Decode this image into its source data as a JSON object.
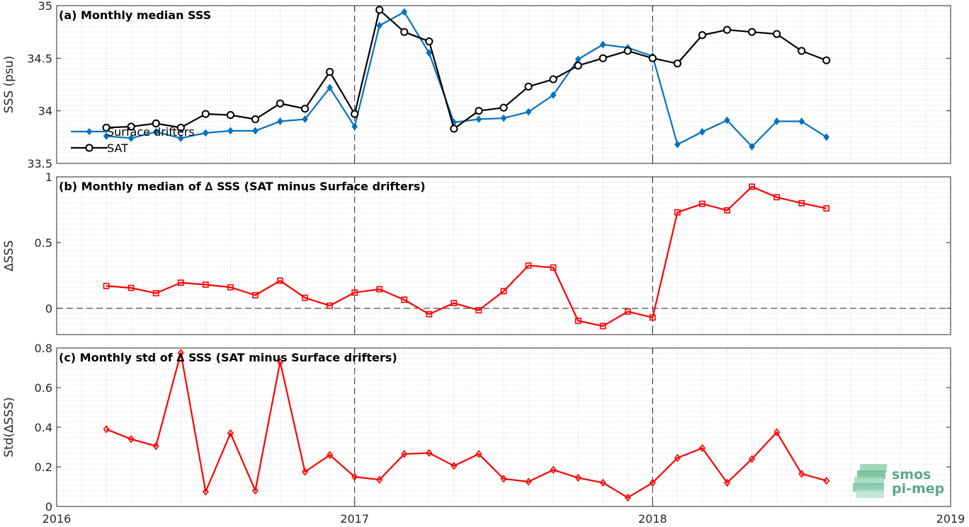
{
  "x_axis": {
    "ticks": [
      "2016",
      "2017",
      "2018",
      "2019"
    ],
    "tick_years": [
      2016,
      2017,
      2018,
      2019
    ]
  },
  "logo": {
    "line1": "smos",
    "line2": "pi-mep"
  },
  "colors": {
    "surface_drifters": "#0072bd",
    "sat": "#000000",
    "delta": "#ff0000"
  },
  "chart_data": [
    {
      "type": "line",
      "title": "(a) Monthly median SSS",
      "ylabel": "SSS (psu)",
      "ylim": [
        33.5,
        35
      ],
      "yticks": [
        "33.5",
        "34",
        "34.5",
        "35"
      ],
      "xlim": [
        "2016-01",
        "2019-01"
      ],
      "grid": true,
      "legend_position": "left",
      "x": [
        "2016-03",
        "2016-04",
        "2016-05",
        "2016-06",
        "2016-07",
        "2016-08",
        "2016-09",
        "2016-10",
        "2016-11",
        "2016-12",
        "2017-01",
        "2017-02",
        "2017-03",
        "2017-04",
        "2017-05",
        "2017-06",
        "2017-07",
        "2017-08",
        "2017-09",
        "2017-10",
        "2017-11",
        "2017-12",
        "2018-01",
        "2018-02",
        "2018-03",
        "2018-04",
        "2018-05",
        "2018-06",
        "2018-07",
        "2018-08"
      ],
      "series": [
        {
          "name": "Surface drifters",
          "marker": "diamond-filled",
          "values": [
            33.76,
            33.74,
            33.8,
            33.74,
            33.79,
            33.81,
            33.81,
            33.9,
            33.92,
            34.22,
            33.85,
            34.81,
            34.94,
            34.55,
            33.89,
            33.92,
            33.93,
            33.99,
            34.15,
            34.49,
            34.63,
            34.6,
            34.52,
            33.68,
            33.8,
            33.91,
            33.66,
            33.9,
            33.9,
            33.75
          ]
        },
        {
          "name": "SAT",
          "marker": "circle",
          "values": [
            33.84,
            33.85,
            33.88,
            33.84,
            33.97,
            33.96,
            33.92,
            34.07,
            34.02,
            34.37,
            33.97,
            34.96,
            34.75,
            34.66,
            33.83,
            34.0,
            34.03,
            34.23,
            34.3,
            34.43,
            34.5,
            34.57,
            34.5,
            34.45,
            34.72,
            34.77,
            34.75,
            34.73,
            34.57,
            34.48
          ]
        }
      ]
    },
    {
      "type": "line",
      "title": "(b) Monthly median of ∆ SSS (SAT minus Surface drifters)",
      "ylabel": "∆SSS",
      "ylim": [
        -0.2,
        1
      ],
      "yticks": [
        "0",
        "0.5",
        "1"
      ],
      "xlim": [
        "2016-01",
        "2019-01"
      ],
      "grid": true,
      "x": [
        "2016-03",
        "2016-04",
        "2016-05",
        "2016-06",
        "2016-07",
        "2016-08",
        "2016-09",
        "2016-10",
        "2016-11",
        "2016-12",
        "2017-01",
        "2017-02",
        "2017-03",
        "2017-04",
        "2017-05",
        "2017-06",
        "2017-07",
        "2017-08",
        "2017-09",
        "2017-10",
        "2017-11",
        "2017-12",
        "2018-01",
        "2018-02",
        "2018-03",
        "2018-04",
        "2018-05",
        "2018-06",
        "2018-07",
        "2018-08"
      ],
      "series": [
        {
          "marker": "square",
          "values": [
            0.17,
            0.155,
            0.115,
            0.195,
            0.18,
            0.16,
            0.1,
            0.21,
            0.08,
            0.02,
            0.12,
            0.145,
            0.065,
            -0.045,
            0.04,
            -0.015,
            0.13,
            0.325,
            0.31,
            -0.095,
            -0.135,
            -0.025,
            -0.07,
            0.73,
            0.795,
            0.745,
            0.925,
            0.845,
            0.8,
            0.76
          ]
        }
      ]
    },
    {
      "type": "line",
      "title": "(c) Monthly std of ∆ SSS (SAT minus Surface drifters)",
      "ylabel": "Std(∆SSS)",
      "ylim": [
        0,
        0.8
      ],
      "yticks": [
        "0",
        "0.2",
        "0.4",
        "0.6",
        "0.8"
      ],
      "xlim": [
        "2016-01",
        "2019-01"
      ],
      "grid": true,
      "x": [
        "2016-03",
        "2016-04",
        "2016-05",
        "2016-06",
        "2016-07",
        "2016-08",
        "2016-09",
        "2016-10",
        "2016-11",
        "2016-12",
        "2017-01",
        "2017-02",
        "2017-03",
        "2017-04",
        "2017-05",
        "2017-06",
        "2017-07",
        "2017-08",
        "2017-09",
        "2017-10",
        "2017-11",
        "2017-12",
        "2018-01",
        "2018-02",
        "2018-03",
        "2018-04",
        "2018-05",
        "2018-06",
        "2018-07",
        "2018-08"
      ],
      "series": [
        {
          "marker": "diamond",
          "values": [
            0.39,
            0.34,
            0.305,
            0.775,
            0.075,
            0.37,
            0.08,
            0.73,
            0.175,
            0.26,
            0.15,
            0.135,
            0.265,
            0.27,
            0.205,
            0.265,
            0.14,
            0.125,
            0.185,
            0.145,
            0.12,
            0.045,
            0.12,
            0.245,
            0.295,
            0.12,
            0.24,
            0.375,
            0.165,
            0.13
          ]
        }
      ]
    }
  ]
}
